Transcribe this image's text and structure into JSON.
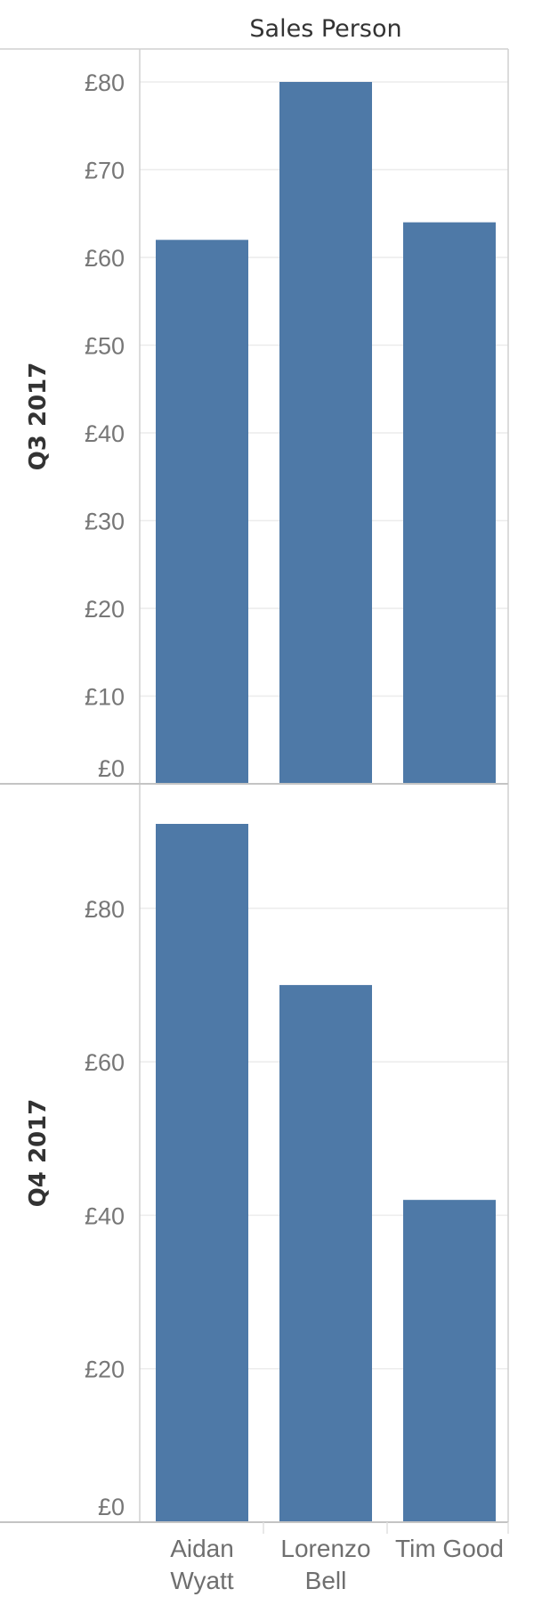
{
  "chart_data": {
    "type": "bar",
    "column_header": "Sales Person",
    "categories": [
      "Aidan Wyatt",
      "Lorenzo Bell",
      "Tim Good"
    ],
    "category_lines": [
      [
        "Aidan",
        "Wyatt"
      ],
      [
        "Lorenzo",
        "Bell"
      ],
      [
        "Tim Good"
      ]
    ],
    "bar_color": "#4e79a7",
    "grid": true,
    "panels": [
      {
        "row_label": "Q3 2017",
        "values": [
          62,
          80,
          64
        ],
        "ylim": [
          0,
          80
        ],
        "ticks": [
          0,
          10,
          20,
          30,
          40,
          50,
          60,
          70,
          80
        ],
        "tick_labels": [
          "£0",
          "£10",
          "£20",
          "£30",
          "£40",
          "£50",
          "£60",
          "£70",
          "£80"
        ]
      },
      {
        "row_label": "Q4 2017",
        "values": [
          91,
          70,
          42
        ],
        "ylim": [
          0,
          91
        ],
        "ticks": [
          0,
          20,
          40,
          60,
          80
        ],
        "tick_labels": [
          "£0",
          "£20",
          "£40",
          "£60",
          "£80"
        ]
      }
    ]
  }
}
